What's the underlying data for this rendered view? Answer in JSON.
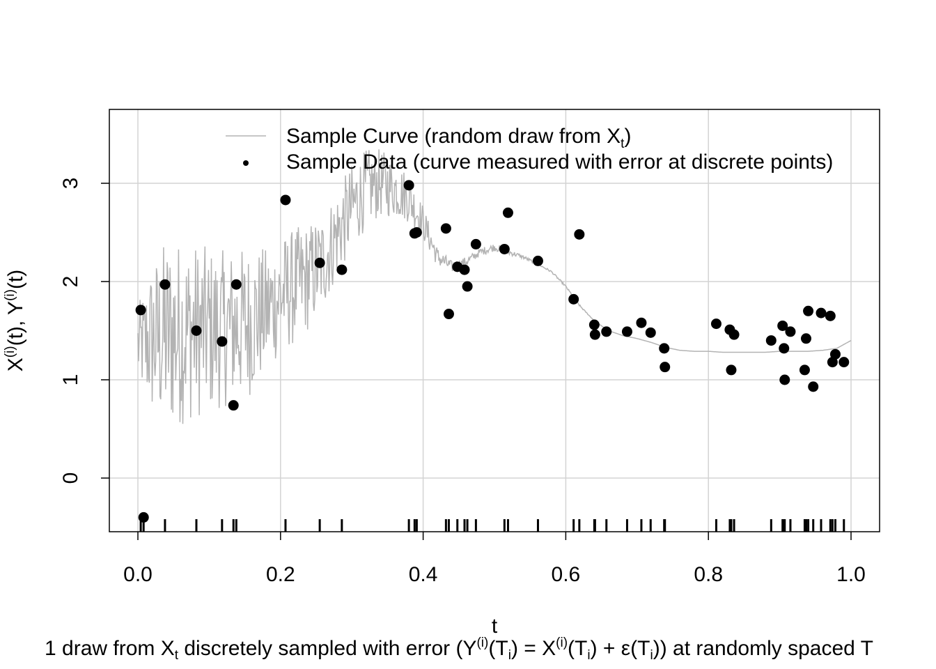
{
  "chart_data": {
    "type": "scatter",
    "title": "",
    "xlabel": "t",
    "ylabel": {
      "base1": "X",
      "sup1": "(i)",
      "mid": "(t), ",
      "base2": "Y",
      "sup2": "(i)",
      "end": "(t)"
    },
    "xlim": [
      0.0,
      1.0
    ],
    "ylim": [
      -0.55,
      3.75
    ],
    "x_ticks": [
      0.0,
      0.2,
      0.4,
      0.6,
      0.8,
      1.0
    ],
    "x_tick_labels": [
      "0.0",
      "0.2",
      "0.4",
      "0.6",
      "0.8",
      "1.0"
    ],
    "y_ticks": [
      0,
      1,
      2,
      3
    ],
    "y_tick_labels": [
      "0",
      "1",
      "2",
      "3"
    ],
    "grid": true,
    "legend_position": "top",
    "legend": [
      {
        "kind": "line",
        "text": "Sample Curve (random draw from X",
        "sub": "t",
        "text_end": ")"
      },
      {
        "kind": "point",
        "text": "Sample Data (curve measured with error at discrete points)",
        "sub": "",
        "text_end": ""
      }
    ],
    "colors": {
      "curve": "#b3b3b3",
      "points": "#000000",
      "grid": "#d3d3d3",
      "axis": "#000000"
    },
    "curve": {
      "name": "Sample Curve",
      "x": [
        0.0,
        0.02,
        0.04,
        0.06,
        0.08,
        0.1,
        0.12,
        0.14,
        0.16,
        0.18,
        0.2,
        0.22,
        0.24,
        0.26,
        0.28,
        0.3,
        0.32,
        0.34,
        0.36,
        0.38,
        0.4,
        0.42,
        0.44,
        0.46,
        0.48,
        0.5,
        0.52,
        0.54,
        0.56,
        0.58,
        0.6,
        0.62,
        0.64,
        0.66,
        0.68,
        0.7,
        0.72,
        0.74,
        0.76,
        0.78,
        0.8,
        0.82,
        0.84,
        0.86,
        0.88,
        0.9,
        0.92,
        0.94,
        0.96,
        0.98,
        1.0
      ],
      "center": [
        1.35,
        1.4,
        1.45,
        1.48,
        1.5,
        1.5,
        1.52,
        1.55,
        1.6,
        1.7,
        1.85,
        1.95,
        2.05,
        2.2,
        2.5,
        2.75,
        2.95,
        3.0,
        2.95,
        2.85,
        2.6,
        2.25,
        2.15,
        2.2,
        2.3,
        2.35,
        2.3,
        2.25,
        2.18,
        2.1,
        1.95,
        1.75,
        1.6,
        1.5,
        1.45,
        1.42,
        1.38,
        1.33,
        1.3,
        1.29,
        1.29,
        1.28,
        1.28,
        1.28,
        1.28,
        1.29,
        1.29,
        1.29,
        1.3,
        1.32,
        1.4
      ],
      "noise": [
        0.4,
        0.8,
        1.0,
        0.95,
        0.9,
        0.85,
        0.8,
        0.8,
        0.75,
        0.65,
        0.6,
        0.6,
        0.55,
        0.5,
        0.45,
        0.45,
        0.4,
        0.35,
        0.3,
        0.25,
        0.18,
        0.1,
        0.06,
        0.05,
        0.04,
        0.04,
        0.03,
        0.02,
        0.01,
        0.01,
        0.01,
        0.01,
        0.0,
        0.0,
        0.0,
        0.0,
        0.0,
        0.0,
        0.0,
        0.0,
        0.0,
        0.0,
        0.0,
        0.0,
        0.0,
        0.0,
        0.0,
        0.0,
        0.0,
        0.0,
        0.0
      ]
    },
    "series": [
      {
        "name": "Sample Data",
        "x": [
          0.004,
          0.008,
          0.038,
          0.082,
          0.118,
          0.134,
          0.138,
          0.207,
          0.255,
          0.286,
          0.38,
          0.388,
          0.391,
          0.432,
          0.436,
          0.448,
          0.458,
          0.462,
          0.474,
          0.514,
          0.519,
          0.561,
          0.611,
          0.619,
          0.64,
          0.641,
          0.657,
          0.686,
          0.706,
          0.719,
          0.738,
          0.739,
          0.811,
          0.83,
          0.832,
          0.836,
          0.888,
          0.904,
          0.906,
          0.907,
          0.915,
          0.935,
          0.937,
          0.94,
          0.947,
          0.958,
          0.971,
          0.974,
          0.978,
          0.99
        ],
        "y": [
          1.71,
          -0.4,
          1.97,
          1.5,
          1.39,
          0.74,
          1.97,
          2.83,
          2.19,
          2.12,
          2.98,
          2.49,
          2.5,
          2.54,
          1.67,
          2.15,
          2.12,
          1.95,
          2.38,
          2.33,
          2.7,
          2.21,
          1.82,
          2.48,
          1.56,
          1.46,
          1.49,
          1.49,
          1.58,
          1.48,
          1.32,
          1.13,
          1.57,
          1.51,
          1.1,
          1.46,
          1.4,
          1.55,
          1.32,
          1.0,
          1.49,
          1.1,
          1.42,
          1.7,
          0.93,
          1.68,
          1.65,
          1.18,
          1.26,
          1.18
        ]
      }
    ]
  },
  "caption": {
    "p1": "1 draw from X",
    "s1": "t",
    "p2": " discretely sampled with error (Y",
    "s2": "(i)",
    "p3": "(T",
    "s3": "i",
    "p4": ") = X",
    "s4": "(i)",
    "p5": "(T",
    "s5": "i",
    "p6": ") + ε(T",
    "s6": "i",
    "p7": ")) at randomly spaced T"
  }
}
